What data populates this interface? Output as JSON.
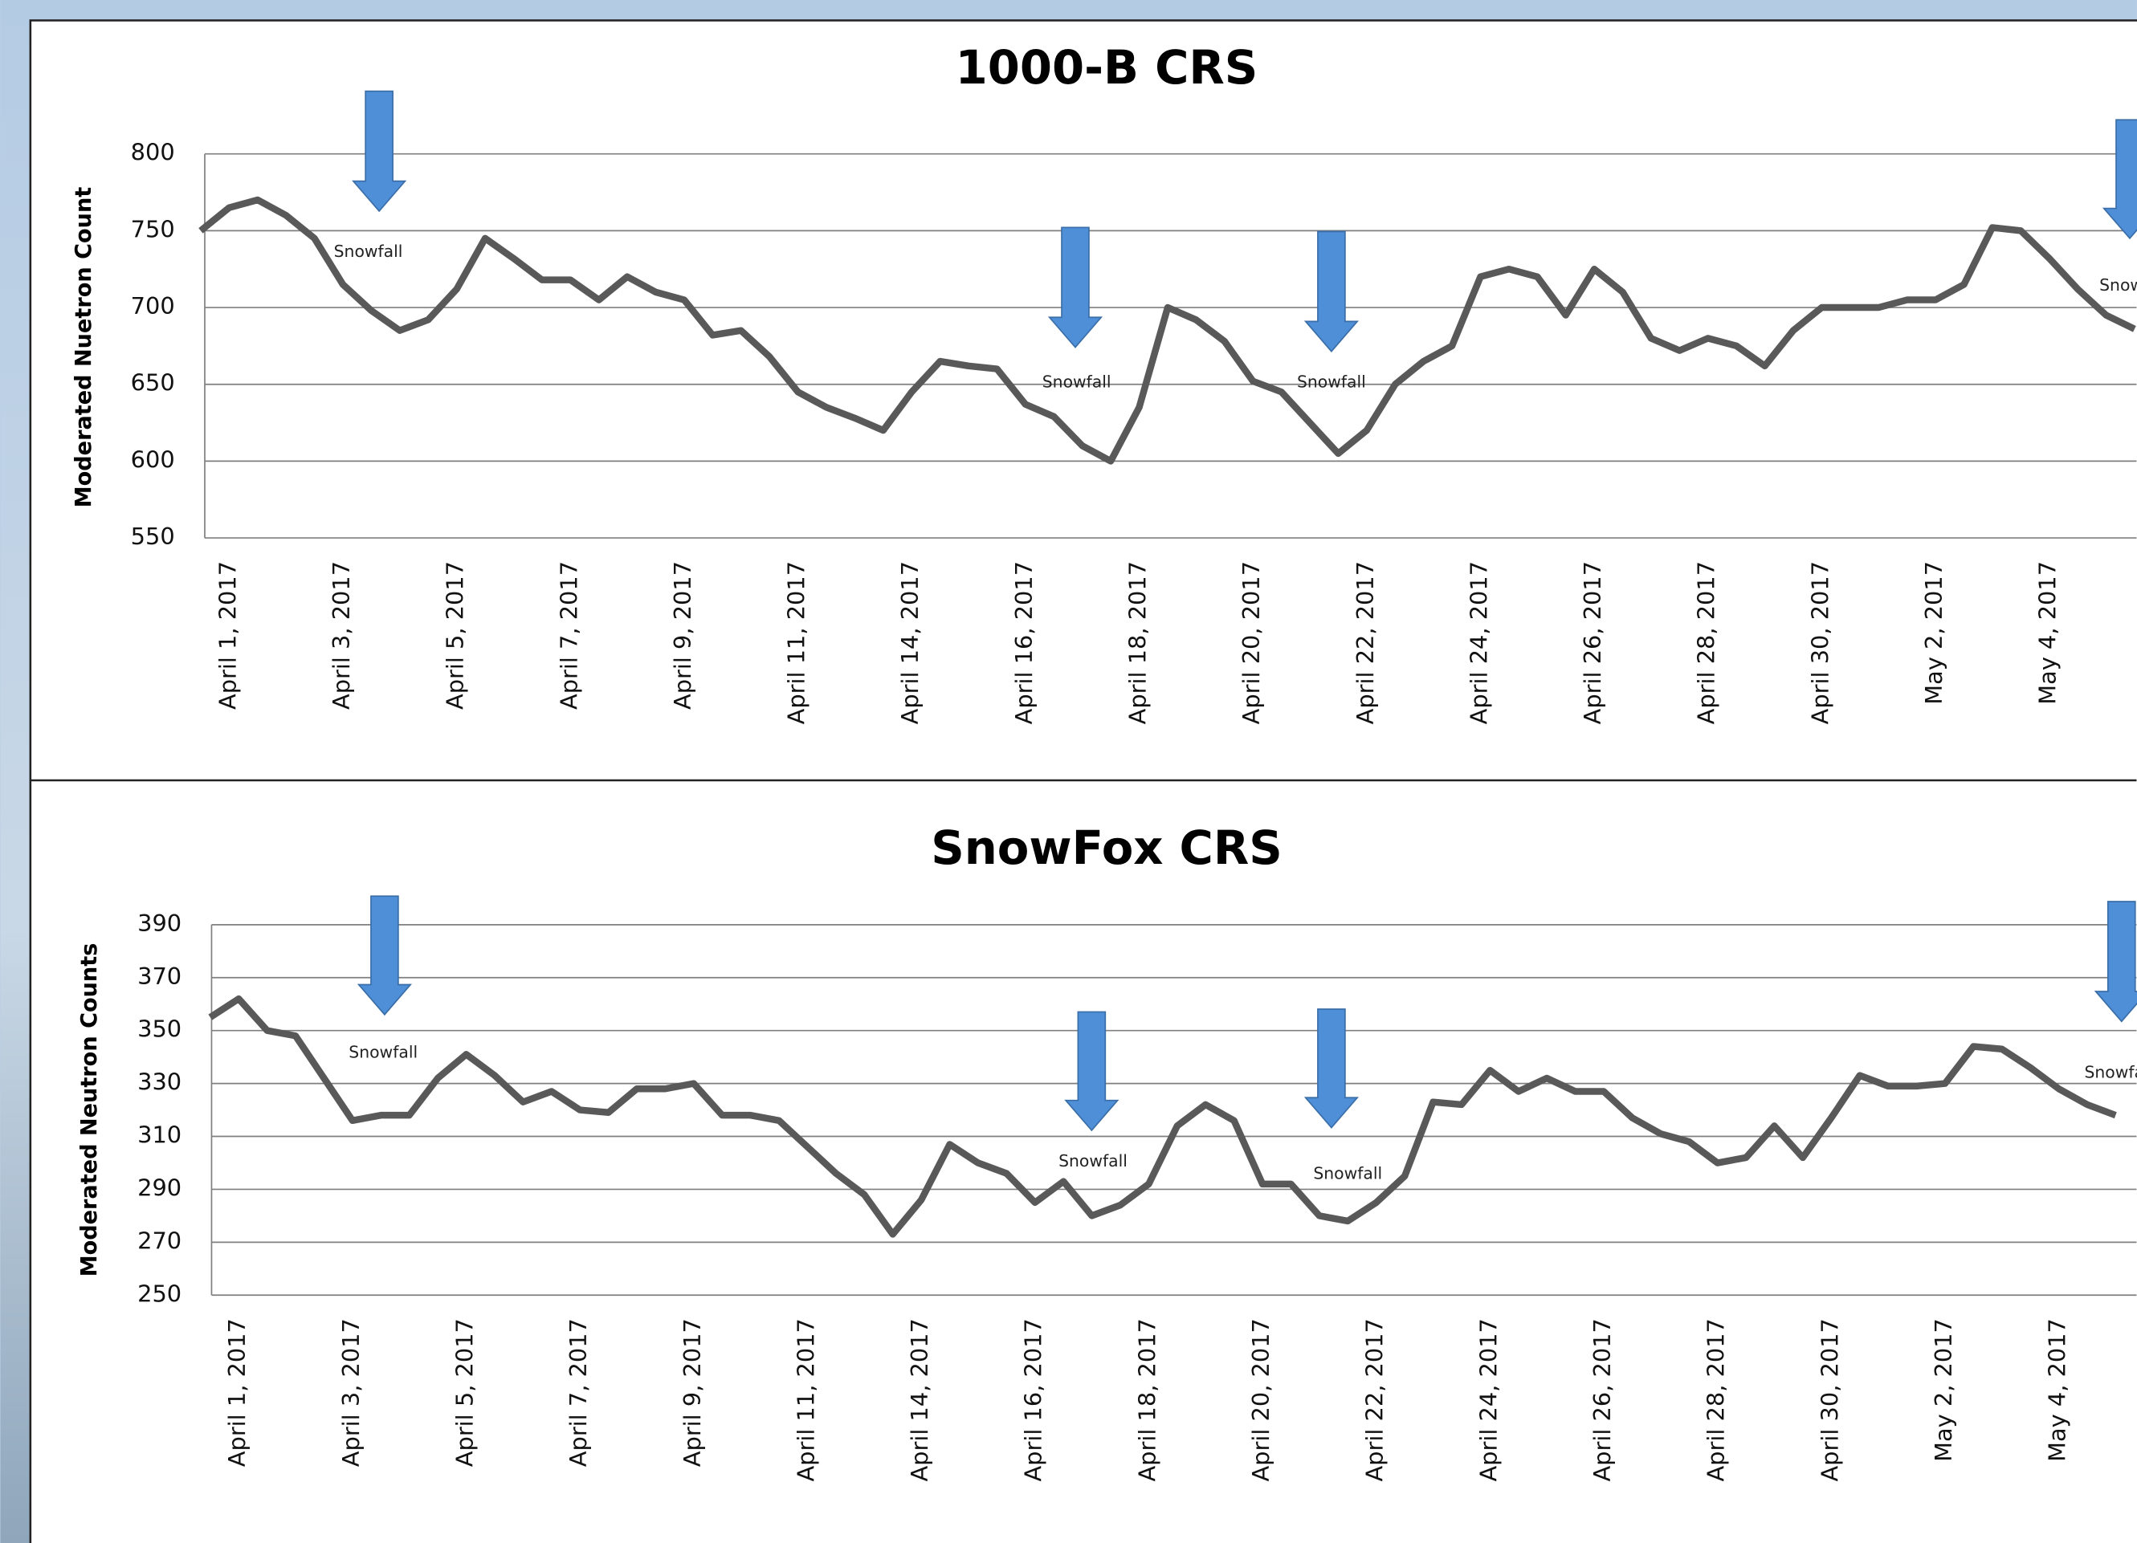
{
  "chart_data": [
    {
      "type": "line",
      "title": "1000-B CRS",
      "y_label": "Moderated Nuetron Count",
      "categories": [
        null,
        "April 1, 2017",
        null,
        null,
        null,
        "April 3, 2017",
        null,
        null,
        null,
        "April 5, 2017",
        null,
        null,
        null,
        "April 7, 2017",
        null,
        null,
        null,
        "April 9, 2017",
        null,
        null,
        null,
        "April 11, 2017",
        null,
        null,
        null,
        "April 14, 2017",
        null,
        null,
        null,
        "April 16, 2017",
        null,
        null,
        null,
        "April 18, 2017",
        null,
        null,
        null,
        "April 20, 2017",
        null,
        null,
        null,
        "April 22, 2017",
        null,
        null,
        null,
        "April 24, 2017",
        null,
        null,
        null,
        "April 26, 2017",
        null,
        null,
        null,
        "April 28, 2017",
        null,
        null,
        null,
        "April 30, 2017",
        null,
        null,
        null,
        "May 2, 2017",
        null,
        null,
        null,
        "May 4, 2017",
        null,
        null,
        null
      ],
      "values": [
        750,
        765,
        770,
        760,
        745,
        715,
        698,
        685,
        692,
        712,
        745,
        732,
        718,
        718,
        705,
        720,
        710,
        705,
        682,
        685,
        668,
        645,
        635,
        628,
        620,
        645,
        665,
        662,
        660,
        637,
        629,
        610,
        600,
        635,
        700,
        692,
        678,
        652,
        645,
        625,
        605,
        620,
        650,
        665,
        675,
        720,
        725,
        720,
        695,
        725,
        710,
        680,
        672,
        680,
        675,
        662,
        685,
        700,
        700,
        700,
        705,
        705,
        715,
        752,
        750,
        732,
        712,
        695,
        686
      ],
      "color": "#595959",
      "ylim": [
        550,
        800
      ],
      "yticks": [
        550,
        600,
        650,
        700,
        750,
        800
      ],
      "grid": true,
      "annotations": [
        "Snowfall",
        "Snowfall",
        "Snowfall",
        "Snowfall"
      ]
    },
    {
      "type": "line",
      "title": "SnowFox CRS",
      "y_label": "Moderated Neutron Counts",
      "categories": [
        null,
        "April 1, 2017",
        null,
        null,
        null,
        "April 3, 2017",
        null,
        null,
        null,
        "April 5, 2017",
        null,
        null,
        null,
        "April 7, 2017",
        null,
        null,
        null,
        "April 9, 2017",
        null,
        null,
        null,
        "April 11, 2017",
        null,
        null,
        null,
        "April 14, 2017",
        null,
        null,
        null,
        "April 16, 2017",
        null,
        null,
        null,
        "April 18, 2017",
        null,
        null,
        null,
        "April 20, 2017",
        null,
        null,
        null,
        "April 22, 2017",
        null,
        null,
        null,
        "April 24, 2017",
        null,
        null,
        null,
        "April 26, 2017",
        null,
        null,
        null,
        "April 28, 2017",
        null,
        null,
        null,
        "April 30, 2017",
        null,
        null,
        null,
        "May 2, 2017",
        null,
        null,
        null,
        "May 4, 2017",
        null,
        null
      ],
      "values": [
        355,
        362,
        350,
        348,
        332,
        316,
        318,
        318,
        332,
        341,
        333,
        323,
        327,
        320,
        319,
        328,
        328,
        330,
        318,
        318,
        316,
        306,
        296,
        288,
        273,
        286,
        307,
        300,
        296,
        285,
        293,
        280,
        284,
        292,
        314,
        322,
        316,
        292,
        292,
        280,
        278,
        285,
        295,
        323,
        322,
        335,
        327,
        332,
        327,
        327,
        317,
        311,
        308,
        300,
        302,
        314,
        302,
        317,
        333,
        329,
        329,
        330,
        344,
        343,
        336,
        328,
        322,
        318
      ],
      "color": "#595959",
      "ylim": [
        250,
        390
      ],
      "yticks": [
        250,
        270,
        290,
        310,
        330,
        350,
        370,
        390
      ],
      "grid": true,
      "annotations": [
        "Snowfall",
        "Snowfall",
        "Snowfall",
        "Snowfall"
      ]
    }
  ]
}
